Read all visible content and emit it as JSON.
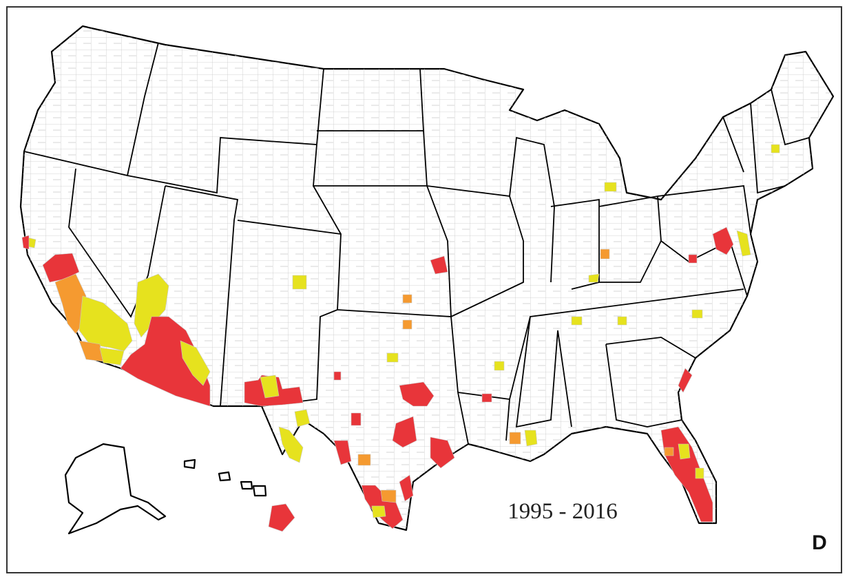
{
  "map": {
    "period": "1995 - 2016",
    "panel": "D"
  }
}
